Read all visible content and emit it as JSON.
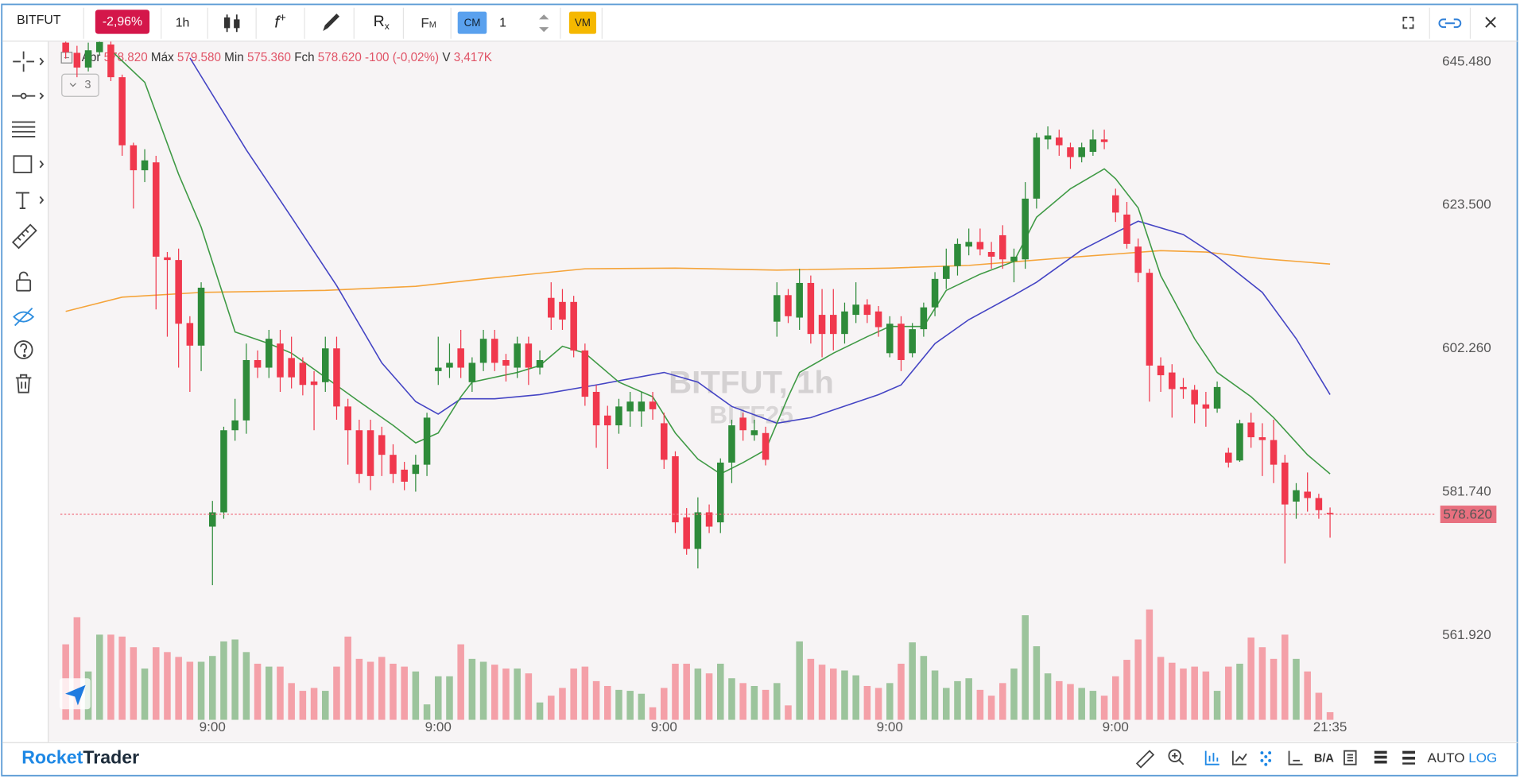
{
  "toolbar": {
    "symbol": "BITFUT",
    "change": "-2,96%",
    "interval": "1h",
    "function_icon": [
      "f",
      "+"
    ],
    "rx_icon": [
      "R",
      "x"
    ],
    "fm": [
      "F",
      "M"
    ],
    "cm": "CM",
    "quantity": "1",
    "vm": "VM"
  },
  "legend": {
    "open_label": "Abr",
    "open": "578.820",
    "high_label": "Máx",
    "high": "579.580",
    "low_label": "Min",
    "low": "575.360",
    "close_label": "Fch",
    "close": "578.620",
    "change": "-100 (-0,02%)",
    "volume_label": "V",
    "volume": "3,417K",
    "collapsed_count": "3"
  },
  "watermark": {
    "title": "BITFUT, 1h",
    "subtitle": "BITF25"
  },
  "footer": {
    "brand": [
      "Rocket",
      "Trader"
    ],
    "ba": "B/A",
    "auto": "AUTO",
    "log": "LOG"
  },
  "chart_data": {
    "type": "candlestick",
    "log": true,
    "grid": false,
    "ylim": [
      550.7,
      648.8
    ],
    "yticks": [
      {
        "value": 561.92,
        "label": "561.920"
      },
      {
        "value": 581.74,
        "label": "581.740"
      },
      {
        "value": 602.26,
        "label": "602.260"
      },
      {
        "value": 623.5,
        "label": "623.500"
      },
      {
        "value": 645.48,
        "label": "645.480"
      }
    ],
    "last_price": {
      "value": 578.62,
      "label": "578.620"
    },
    "up_color": "#2e8b3a",
    "down_color": "#f0384d",
    "volume_up_color": "#9cc49c",
    "volume_down_color": "#f4a0a8",
    "categories": [
      null,
      null,
      null,
      null,
      null,
      null,
      null,
      null,
      null,
      null,
      null,
      null,
      null,
      "9:00",
      null,
      null,
      null,
      null,
      null,
      null,
      null,
      null,
      null,
      null,
      null,
      null,
      null,
      null,
      null,
      null,
      null,
      null,
      null,
      "9:00",
      null,
      null,
      null,
      null,
      null,
      null,
      null,
      null,
      null,
      null,
      null,
      null,
      null,
      null,
      null,
      null,
      null,
      null,
      null,
      "9:00",
      null,
      null,
      null,
      null,
      null,
      null,
      null,
      null,
      null,
      null,
      null,
      null,
      null,
      null,
      null,
      null,
      null,
      null,
      null,
      "9:00",
      null,
      null,
      null,
      null,
      null,
      null,
      null,
      null,
      null,
      null,
      null,
      null,
      null,
      null,
      null,
      null,
      null,
      null,
      null,
      "9:00",
      null,
      null,
      null,
      null,
      null,
      null,
      null,
      null,
      null,
      null,
      null,
      null,
      null,
      null,
      null,
      null,
      null,
      null,
      "21:35"
    ],
    "open": [
      648.5,
      646.9,
      644.6,
      647,
      648.2,
      643.1,
      632.6,
      628.8,
      630,
      615.7,
      615.3,
      606,
      602.7,
      576.9,
      578.9,
      590.5,
      591.9,
      600.6,
      599.5,
      603,
      600.9,
      600.2,
      597.5,
      597.4,
      602.3,
      593.9,
      590.5,
      590.5,
      589.8,
      587,
      584.9,
      584.3,
      585.6,
      599,
      599.5,
      602.3,
      597.4,
      600.2,
      603.7,
      600.6,
      599.5,
      603,
      599.5,
      609.7,
      609.1,
      609.1,
      602,
      596,
      592.6,
      591.2,
      593.2,
      593.2,
      594.6,
      591.5,
      586.8,
      578.2,
      573.8,
      578.9,
      577.5,
      585.9,
      592.3,
      589.8,
      590.1,
      606.2,
      610.1,
      606.8,
      611.9,
      607.2,
      607.2,
      604.4,
      607.2,
      608.7,
      607.7,
      601.6,
      605.9,
      601.6,
      605.1,
      608.3,
      612.5,
      614.4,
      617.3,
      618,
      616.5,
      619,
      615.1,
      615.4,
      624.5,
      633.5,
      633.8,
      632.3,
      630.8,
      631.6,
      633.5,
      625,
      622.1,
      617.3,
      613.4,
      599.8,
      598.8,
      596.7,
      596.3,
      594.2,
      593.6,
      587.3,
      586.2,
      591.6,
      589.5,
      589.1,
      585.9,
      580.4,
      581.8,
      580.9,
      578.82
    ],
    "high": [
      650,
      648,
      648.5,
      650,
      649,
      643.5,
      633,
      632,
      631,
      616.5,
      617,
      607,
      612,
      580.5,
      591,
      595,
      603,
      602,
      605,
      605,
      604,
      601,
      599,
      604,
      604,
      595,
      592,
      592,
      591,
      588.5,
      586,
      587,
      593,
      604,
      603,
      605,
      601,
      605,
      605,
      601.5,
      604,
      604,
      602,
      612,
      611,
      610,
      603,
      597,
      594,
      595,
      596,
      596,
      596,
      593,
      587.5,
      579.5,
      581,
      580,
      586.5,
      592,
      593,
      592,
      591,
      612,
      611,
      614,
      613,
      611,
      611,
      609,
      612,
      609.5,
      608.5,
      607,
      607,
      606,
      609,
      613.5,
      617,
      618.5,
      620,
      620,
      618,
      620.5,
      617,
      627,
      634.5,
      635.5,
      635,
      633,
      633,
      635,
      635,
      626,
      624,
      618.5,
      614,
      601,
      600,
      598,
      597,
      596,
      597.5,
      588,
      592,
      593,
      591.5,
      592,
      587,
      583,
      584.5,
      581.5,
      579.58
    ],
    "low": [
      646,
      643.1,
      644,
      646.5,
      642.5,
      631,
      623,
      627,
      608,
      604,
      599.5,
      596,
      599,
      568.8,
      578,
      589,
      590,
      598,
      598,
      596,
      596.5,
      595.5,
      590.5,
      596,
      592,
      585.6,
      583,
      582,
      584,
      583,
      582,
      581.8,
      584,
      597,
      598,
      598,
      596,
      599,
      599,
      597.5,
      598,
      597,
      598.5,
      605,
      605,
      601,
      594,
      588,
      585,
      590,
      591,
      591,
      592,
      585,
      576,
      573,
      571.1,
      576,
      576,
      583,
      589,
      589,
      585.5,
      604,
      606,
      605,
      603,
      601,
      602,
      603,
      606,
      606,
      604,
      601,
      599,
      601,
      604,
      607,
      611,
      613,
      616,
      616,
      614,
      614,
      612,
      614,
      623,
      632,
      631,
      629,
      630,
      631,
      632,
      621,
      617,
      612,
      594.6,
      596,
      592.3,
      595,
      591.5,
      591,
      593,
      585.2,
      586,
      588,
      584,
      583,
      571.8,
      578,
      579,
      578,
      575.36
    ],
    "close": [
      647,
      644.6,
      647.3,
      648.6,
      643.1,
      632.6,
      628.8,
      630.3,
      615.8,
      615.3,
      605.9,
      602.7,
      611.2,
      578.9,
      590.5,
      591.9,
      600.6,
      599.5,
      603.7,
      598.1,
      598.1,
      597,
      597,
      602.3,
      593.9,
      590.5,
      584.3,
      584,
      587,
      584.3,
      583.2,
      585.6,
      592.3,
      599.5,
      600.2,
      599.5,
      600.2,
      603.7,
      600.2,
      599.8,
      603,
      599.5,
      600.6,
      606.8,
      606.5,
      602,
      595.3,
      591.2,
      591.2,
      593.9,
      594.6,
      594.6,
      593.5,
      586.3,
      577.5,
      573.8,
      578.9,
      576.9,
      585.9,
      591.2,
      590.5,
      590.5,
      586.3,
      610.1,
      607,
      611.9,
      604.4,
      604.4,
      604.4,
      607.7,
      608.7,
      607.2,
      605.4,
      605.9,
      600.6,
      605.1,
      608.3,
      612.5,
      614.4,
      617.7,
      618,
      616.9,
      615.8,
      615.4,
      615.8,
      624.5,
      633.8,
      634.1,
      632.6,
      630.8,
      632.3,
      633.5,
      633.1,
      622.4,
      617.7,
      613.4,
      599.8,
      598.4,
      596.4,
      596.4,
      594.2,
      593.6,
      596.7,
      585.9,
      591.5,
      589.5,
      589.1,
      585.6,
      580,
      582,
      580.9,
      579.2,
      578.62
    ],
    "volume": [
      33540,
      45580,
      21500,
      37840,
      37840,
      36980,
      32250,
      22790,
      32250,
      30100,
      27950,
      25800,
      25800,
      28380,
      34830,
      35690,
      30100,
      24940,
      23650,
      23650,
      16340,
      12900,
      14190,
      12900,
      23650,
      36980,
      27090,
      25800,
      27950,
      24940,
      23650,
      21500,
      6880,
      19350,
      19350,
      33540,
      27090,
      25800,
      24510,
      22790,
      22790,
      20640,
      7740,
      10750,
      14190,
      22790,
      23650,
      17200,
      15050,
      13330,
      12900,
      11610,
      5590,
      14190,
      24940,
      24940,
      22790,
      20640,
      24940,
      18490,
      16340,
      15050,
      13330,
      16340,
      6450,
      34830,
      27090,
      24510,
      22790,
      21930,
      19780,
      15050,
      14190,
      16340,
      24940,
      34400,
      28380,
      21930,
      14190,
      17200,
      18490,
      13330,
      10750,
      16340,
      22790,
      46440,
      32680,
      20640,
      17200,
      15910,
      14190,
      12900,
      10750,
      19350,
      26660,
      35690,
      49020,
      27950,
      25370,
      22790,
      23650,
      21500,
      12900,
      23650,
      24940,
      36550,
      32250,
      27090,
      37840,
      27090,
      21500,
      12040,
      3417
    ],
    "series": [
      {
        "color": "#f5a43a",
        "x": [
          0,
          5,
          12,
          23,
          31,
          37,
          46,
          54,
          63,
          73,
          80,
          89,
          97,
          101,
          106,
          112
        ],
        "values": [
          607.7,
          609.8,
          610.5,
          610.8,
          611.4,
          612.5,
          614,
          614.1,
          613.8,
          614.1,
          614.5,
          615.7,
          616.7,
          616.5,
          615.5,
          614.7
        ]
      },
      {
        "color": "#4444c4",
        "x": [
          11,
          16,
          20,
          24,
          28,
          31,
          33,
          35,
          38,
          42,
          47,
          53,
          56,
          59,
          63,
          66,
          72,
          74,
          77,
          80,
          84,
          86,
          90,
          93,
          95,
          99,
          102,
          106,
          109,
          112
        ],
        "values": [
          646.1,
          631.9,
          621.7,
          611.5,
          600.2,
          594.6,
          592.8,
          595,
          595,
          595.6,
          597,
          598.8,
          597.4,
          593.9,
          591.5,
          592.3,
          595.6,
          597,
          603,
          606.5,
          610.1,
          612,
          616.8,
          619.4,
          621.1,
          619.1,
          615.8,
          610.5,
          603.7,
          595.6
        ]
      },
      {
        "color": "#3f9a45",
        "x": [
          4,
          7,
          10,
          12,
          15,
          18,
          20,
          23,
          26,
          29,
          31,
          33,
          35,
          36,
          40,
          42,
          44,
          46,
          49,
          52,
          54,
          56,
          58,
          60,
          62,
          64,
          65,
          68,
          71,
          73,
          76,
          78,
          81,
          84,
          86,
          89,
          92,
          93,
          95,
          97,
          100,
          102,
          105,
          107,
          110,
          112
        ],
        "values": [
          647.3,
          642.3,
          628.2,
          620.2,
          604.7,
          603,
          601.6,
          598.1,
          594.6,
          591.2,
          588.7,
          590.1,
          595.3,
          597.4,
          598.8,
          599.8,
          602.6,
          601.6,
          597.4,
          595.3,
          590.1,
          586.4,
          584.3,
          585.9,
          587.7,
          595.3,
          598.8,
          601.6,
          604,
          605.5,
          605.5,
          610.8,
          613.2,
          615.1,
          621.7,
          626,
          629,
          627.5,
          623.1,
          613,
          603.7,
          598.8,
          595.3,
          592.3,
          587,
          584.3
        ]
      }
    ]
  }
}
